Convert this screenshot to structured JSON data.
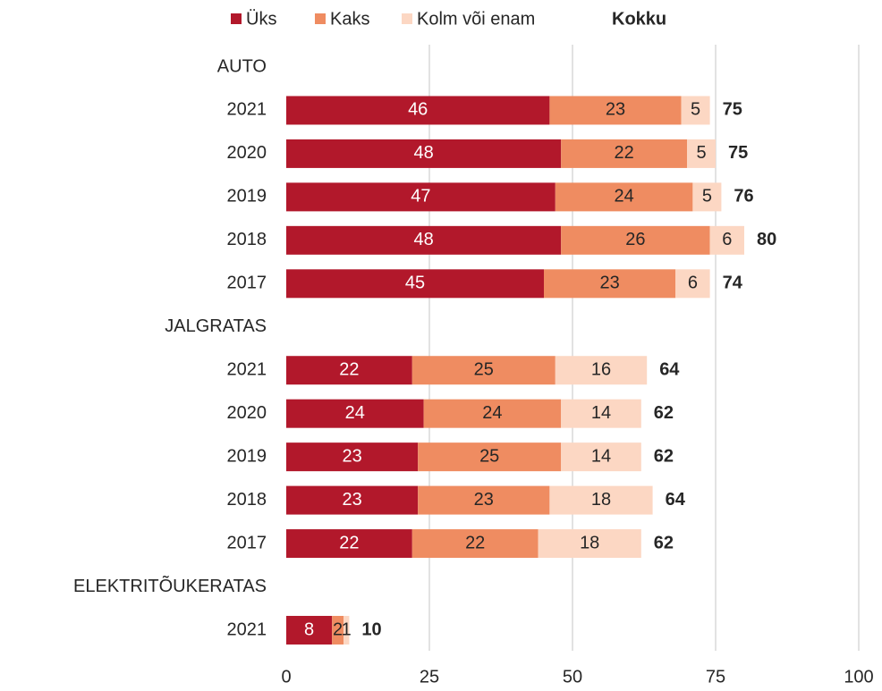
{
  "chart_data": {
    "type": "stacked_bar_horizontal",
    "categories": [
      "AUTO",
      "2021",
      "2020",
      "2019",
      "2018",
      "2017",
      "JALGRATAS",
      "2021",
      "2020",
      "2019",
      "2018",
      "2017",
      "ELEKTRITÕUKERATAS",
      "2021"
    ],
    "series": [
      {
        "name": "Üks",
        "color": "#b2182b",
        "values": [
          null,
          46,
          48,
          47,
          48,
          45,
          null,
          22,
          24,
          23,
          23,
          22,
          null,
          8
        ]
      },
      {
        "name": "Kaks",
        "color": "#ef8c61",
        "values": [
          null,
          23,
          22,
          24,
          26,
          23,
          null,
          25,
          24,
          25,
          23,
          22,
          null,
          2
        ]
      },
      {
        "name": "Kolm või enam",
        "color": "#fcd7c3",
        "values": [
          null,
          5,
          5,
          5,
          6,
          6,
          null,
          16,
          14,
          14,
          18,
          18,
          null,
          1
        ]
      }
    ],
    "totals": {
      "name": "Kokku",
      "values": [
        null,
        75,
        75,
        76,
        80,
        74,
        null,
        64,
        62,
        62,
        64,
        62,
        null,
        10
      ]
    },
    "xlim": [
      0,
      100
    ],
    "xticks": [
      0,
      25,
      50,
      75,
      100
    ],
    "grid": true,
    "legend": "top"
  }
}
